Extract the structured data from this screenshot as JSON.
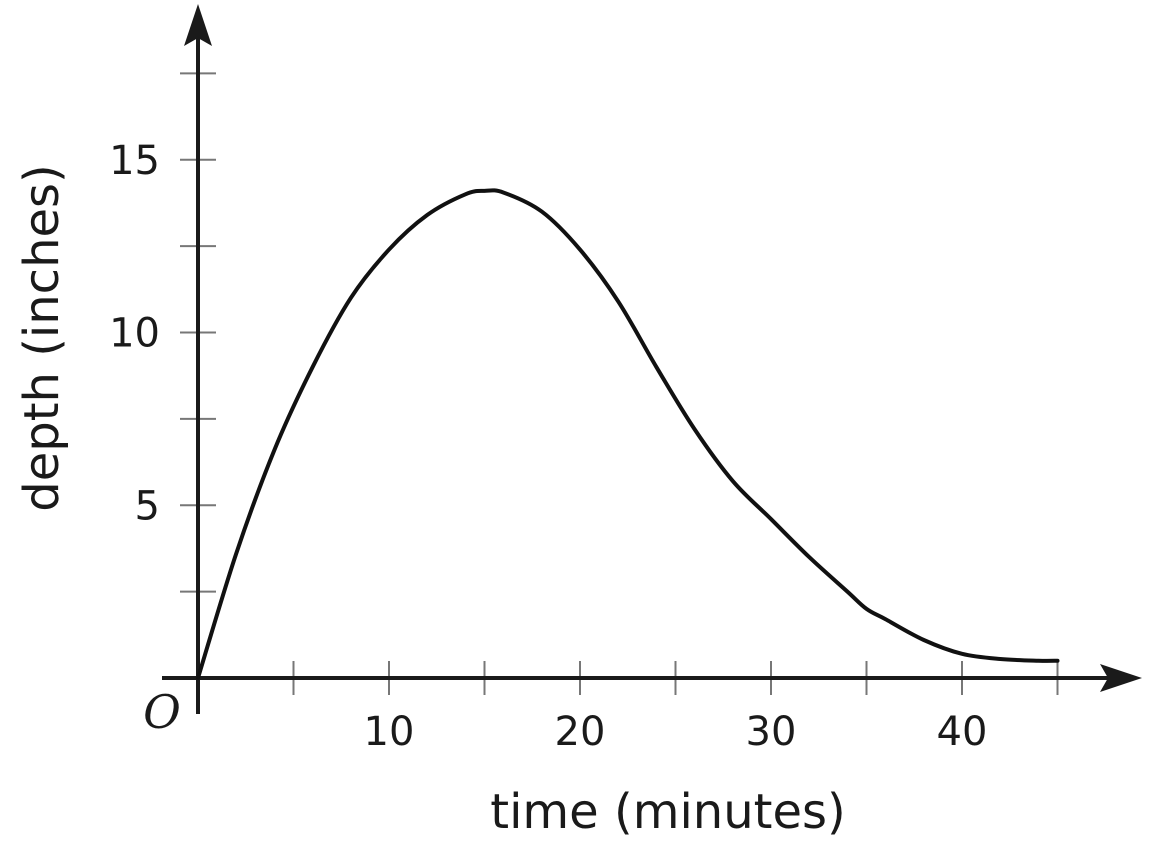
{
  "chart_data": {
    "type": "line",
    "xlabel": "time (minutes)",
    "ylabel": "depth (inches)",
    "origin_label": "O",
    "xlim": [
      0,
      45
    ],
    "ylim": [
      0,
      17.5
    ],
    "x_ticks": [
      5,
      10,
      15,
      20,
      25,
      30,
      35,
      40,
      45
    ],
    "x_tick_labels": [
      "10",
      "20",
      "30",
      "40"
    ],
    "x_tick_label_values": [
      10,
      20,
      30,
      40
    ],
    "y_ticks": [
      2.5,
      5,
      7.5,
      10,
      12.5,
      15,
      17.5
    ],
    "y_tick_labels": [
      "5",
      "10",
      "15"
    ],
    "y_tick_label_values": [
      5,
      10,
      15
    ],
    "grid": false,
    "series": [
      {
        "color": "#111111",
        "x": [
          0,
          2,
          4,
          6,
          8,
          10,
          12,
          14,
          15,
          16,
          18,
          20,
          22,
          24,
          26,
          28,
          30,
          32,
          34,
          35,
          36,
          38,
          40,
          42,
          44,
          45
        ],
        "y": [
          0,
          3.6,
          6.6,
          9.0,
          11.0,
          12.4,
          13.4,
          14.0,
          14.1,
          14.05,
          13.5,
          12.4,
          10.9,
          9.0,
          7.2,
          5.7,
          4.6,
          3.5,
          2.5,
          2.0,
          1.7,
          1.1,
          0.7,
          0.55,
          0.5,
          0.5
        ]
      }
    ]
  }
}
